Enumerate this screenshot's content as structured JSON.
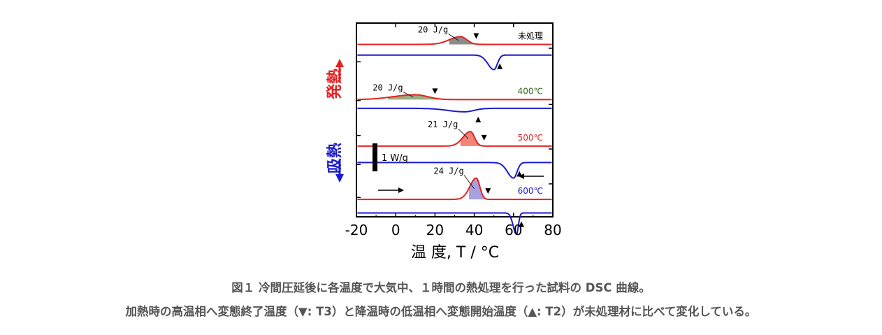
{
  "chart_data": {
    "type": "line",
    "xlabel": "温 度, T / °C",
    "xlim": [
      -20,
      80
    ],
    "xticks": [
      "-20",
      "0",
      "20",
      "40",
      "60",
      "80"
    ],
    "ylabel_exo": "発熱",
    "ylabel_endo": "吸熱",
    "scale_bar": "1 W/g",
    "series": [
      {
        "name": "未処理",
        "color": "#e82020",
        "baseline": 0.11,
        "peak_T": 33,
        "peak_w": 4.5,
        "peak_h": 0.04,
        "onset_T": 27,
        "end_T": 41,
        "shade": "#777777",
        "label": "20 J/g",
        "marker_T3": 41
      },
      {
        "name": "",
        "color": "#1a1ad0",
        "baseline": 0.165,
        "dip_T": 50,
        "dip_w": 2.2,
        "dip_h": 0.075,
        "marker_T2": 53
      },
      {
        "name": "400℃",
        "color": "#e82020",
        "baseline": 0.395,
        "peak_T": 10,
        "peak_w": 9,
        "peak_h": 0.025,
        "onset_T": -4,
        "end_T": 22,
        "shade": "#8a9e6a",
        "label": "20 J/g",
        "marker_T3": 20
      },
      {
        "name": "",
        "color": "#1a1ad0",
        "baseline": 0.44,
        "dip_T": 35,
        "dip_w": 6,
        "dip_h": 0.018,
        "marker_T2": 42
      },
      {
        "name": "500℃",
        "color": "#e82020",
        "baseline": 0.635,
        "peak_T": 38,
        "peak_w": 3,
        "peak_h": 0.075,
        "onset_T": 33,
        "end_T": 44,
        "shade": "#f07060",
        "label": "21 J/g",
        "marker_T3": 45
      },
      {
        "name": "",
        "color": "#1a1ad0",
        "baseline": 0.72,
        "dip_T": 60,
        "dip_w": 2.2,
        "dip_h": 0.08,
        "marker_T2": 63
      },
      {
        "name": "600℃",
        "color": "#e82020",
        "baseline": 0.91,
        "peak_T": 41,
        "peak_w": 2.6,
        "peak_h": 0.11,
        "onset_T": 37,
        "end_T": 46,
        "shade": "#9a90d8",
        "label": "24 J/g",
        "marker_T3": 47
      },
      {
        "name": "",
        "color": "#1a1ad0",
        "baseline": 0.98,
        "dip_T": 61.5,
        "dip_w": 1.2,
        "dip_h": 0.11,
        "marker_T2": 64
      }
    ]
  },
  "caption": {
    "line1": "図１ 冷間圧延後に各温度で大気中、１時間の熱処理を行った試料の DSC 曲線。",
    "line2": "加熱時の高温相へ変態終了温度（▼: T3）と降温時の低温相へ変態開始温度（▲: T2）が未処理材に比べて変化している。"
  }
}
